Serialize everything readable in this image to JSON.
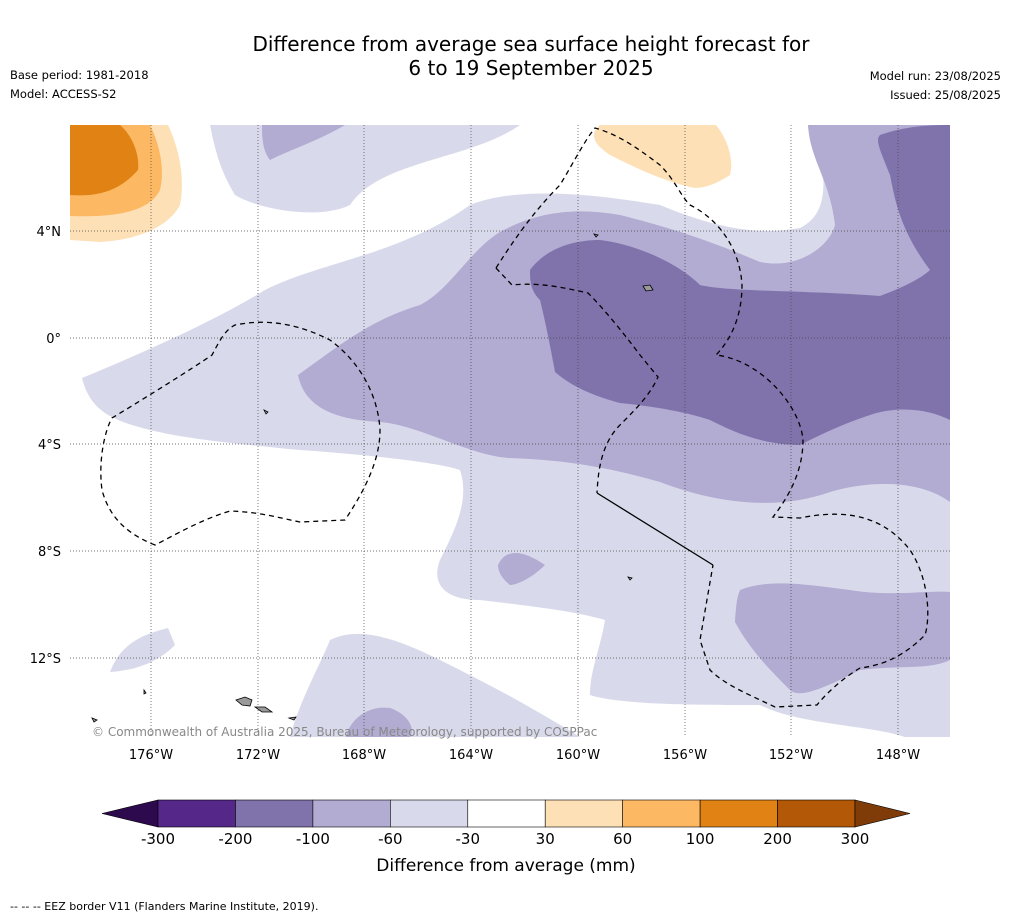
{
  "header": {
    "title_line1": "Difference from average sea surface height forecast for",
    "title_line2": "6 to 19 September 2025",
    "base_period": "Base period: 1981-2018",
    "model": "Model: ACCESS-S2",
    "model_run": "Model run: 23/08/2025",
    "issued": "Issued: 25/08/2025"
  },
  "map": {
    "copyright": "© Commonwealth of Australia 2025, Bureau of Meteorology, supported by COSPPac",
    "lat_labels": [
      "4°N",
      "0°",
      "4°S",
      "8°S",
      "12°S"
    ],
    "lon_labels": [
      "176°W",
      "172°W",
      "168°W",
      "164°W",
      "160°W",
      "156°W",
      "152°W",
      "148°W"
    ]
  },
  "legend": {
    "title": "Difference from average (mm)",
    "ticks": [
      "-300",
      "-200",
      "-100",
      "-60",
      "-30",
      "30",
      "60",
      "100",
      "200",
      "300"
    ],
    "colors": {
      "below_-300": "#2d0a4e",
      "-300_-200": "#542788",
      "-200_-100": "#8073ac",
      "-100_-60": "#b2abd2",
      "-60_-30": "#d8daeb",
      "-30_30": "#ffffff",
      "30_60": "#fee0b6",
      "60_100": "#fdb863",
      "100_200": "#e08214",
      "200_300": "#b35806",
      "above_300": "#7f3b08"
    }
  },
  "footer": {
    "eez_note": "--  --  -- EEZ border V11 (Flanders Marine Institute, 2019)."
  }
}
